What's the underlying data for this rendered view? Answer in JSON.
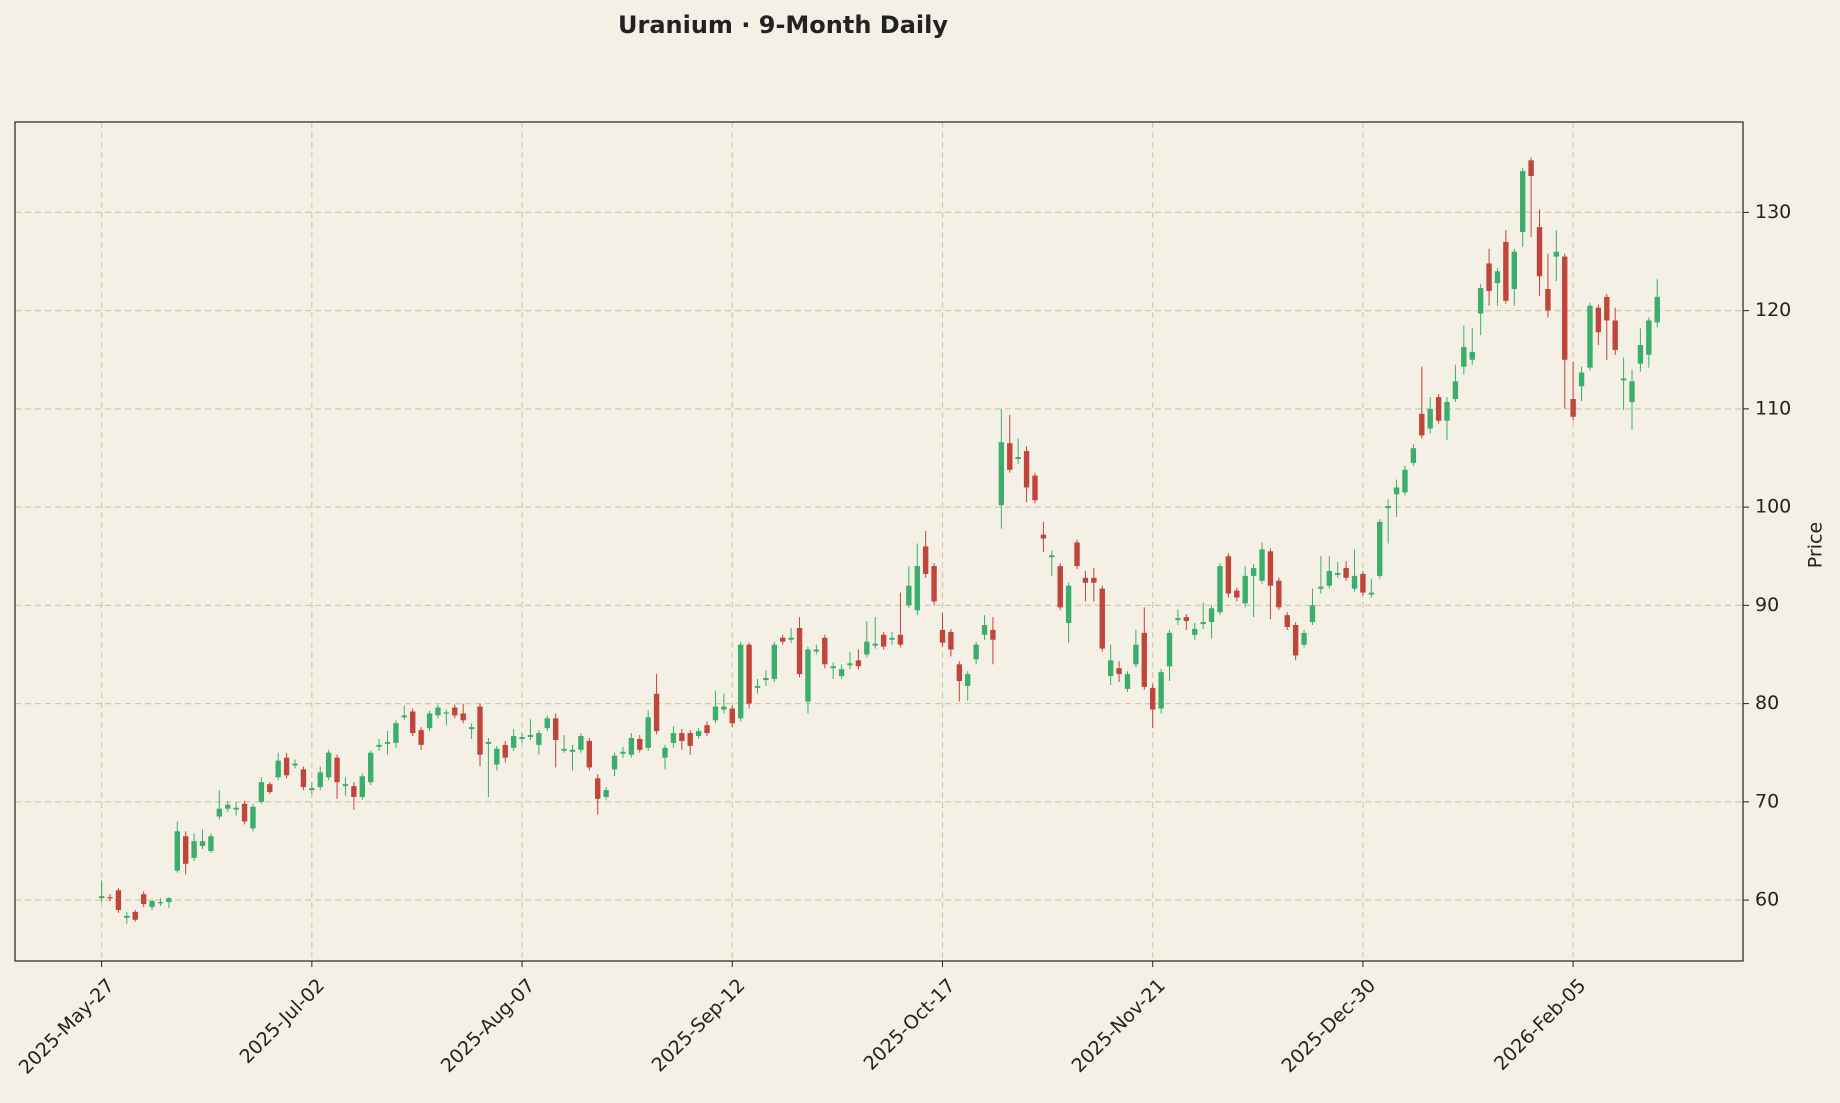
{
  "chart_data": {
    "type": "candlestick",
    "title": "Uranium  ·  9-Month Daily",
    "y_label": "Price",
    "up_color": "#3aae6a",
    "down_color": "#c0453a",
    "grid": true,
    "ylim": [
      53.8,
      139.2
    ],
    "yticks": [
      60,
      70,
      80,
      90,
      100,
      110,
      120,
      130
    ],
    "xlim": [
      -10.3,
      195.2
    ],
    "categories": [
      "2025-May-27",
      null,
      null,
      null,
      null,
      null,
      null,
      null,
      null,
      null,
      null,
      null,
      null,
      null,
      null,
      null,
      null,
      null,
      null,
      null,
      null,
      null,
      null,
      null,
      null,
      "2025-Jul-02",
      null,
      null,
      null,
      null,
      null,
      null,
      null,
      null,
      null,
      null,
      null,
      null,
      null,
      null,
      null,
      null,
      null,
      null,
      null,
      null,
      null,
      null,
      null,
      null,
      "2025-Aug-07",
      null,
      null,
      null,
      null,
      null,
      null,
      null,
      null,
      null,
      null,
      null,
      null,
      null,
      null,
      null,
      null,
      null,
      null,
      null,
      null,
      null,
      null,
      null,
      null,
      "2025-Sep-12",
      null,
      null,
      null,
      null,
      null,
      null,
      null,
      null,
      null,
      null,
      null,
      null,
      null,
      null,
      null,
      null,
      null,
      null,
      null,
      null,
      null,
      null,
      null,
      null,
      "2025-Oct-17",
      null,
      null,
      null,
      null,
      null,
      null,
      null,
      null,
      null,
      null,
      null,
      null,
      null,
      null,
      null,
      null,
      null,
      null,
      null,
      null,
      null,
      null,
      null,
      null,
      "2025-Nov-21",
      null,
      null,
      null,
      null,
      null,
      null,
      null,
      null,
      null,
      null,
      null,
      null,
      null,
      null,
      null,
      null,
      null,
      null,
      null,
      null,
      null,
      null,
      null,
      null,
      "2025-Dec-30",
      null,
      null,
      null,
      null,
      null,
      null,
      null,
      null,
      null,
      null,
      null,
      null,
      null,
      null,
      null,
      null,
      null,
      null,
      null,
      null,
      null,
      null,
      null,
      null,
      "2026-Feb-05",
      null,
      null,
      null,
      null,
      null,
      null,
      null,
      null,
      null,
      null
    ],
    "open": [
      60.2,
      60.3,
      61,
      58.2,
      58.8,
      60.6,
      59.3,
      59.7,
      59.8,
      63,
      66.5,
      64.3,
      65.5,
      65,
      68.5,
      69.3,
      69.2,
      69.8,
      67.3,
      70,
      71.8,
      72.5,
      74.5,
      73.7,
      73.3,
      71.2,
      71.5,
      72.5,
      74.5,
      71.6,
      71.6,
      70.5,
      72,
      75.6,
      75.9,
      76,
      78.6,
      79.2,
      77.3,
      77.5,
      78.8,
      79,
      79.6,
      79,
      77.4,
      79.7,
      75.9,
      73.8,
      75.8,
      75.5,
      76.4,
      76.6,
      75.8,
      77.5,
      78.5,
      75.2,
      75.1,
      75.3,
      76.2,
      72.4,
      70.5,
      73.3,
      74.9,
      74.8,
      76.4,
      75.5,
      81,
      74.5,
      76,
      77,
      77,
      76.7,
      77.8,
      78.3,
      79.4,
      79.5,
      78.5,
      86,
      81.6,
      82.4,
      82.5,
      86.7,
      86.5,
      87.7,
      80.2,
      85.3,
      86.7,
      83.6,
      82.8,
      83.9,
      84.4,
      85,
      85.9,
      87,
      86.5,
      87,
      90,
      89.5,
      96,
      94,
      87.5,
      87.3,
      84,
      81.8,
      84.5,
      87,
      87.5,
      100.2,
      106.5,
      104.9,
      105.7,
      103.2,
      97.2,
      94.9,
      94,
      88.2,
      96.4,
      92.8,
      92.8,
      91.7,
      82.8,
      83.6,
      81.5,
      84,
      87.2,
      81.6,
      79.5,
      83.8,
      88.5,
      88.8,
      87,
      88.1,
      88.3,
      89.3,
      95,
      91.5,
      90.2,
      93,
      92.5,
      95.5,
      92.5,
      89,
      88,
      86,
      88.3,
      91.7,
      92,
      93.1,
      93.8,
      91.7,
      93.2,
      91.1,
      93,
      99.9,
      101.3,
      101.5,
      104.5,
      109.5,
      108,
      111.2,
      108.8,
      111,
      114.3,
      115,
      119.7,
      124.8,
      122.8,
      127,
      122.2,
      128,
      135.3,
      128.5,
      122.2,
      125.5,
      125.5,
      111,
      112.3,
      114.2,
      120.3,
      121.4,
      119,
      112.9,
      110.7,
      114.6,
      115.5,
      118.8
    ],
    "high": [
      62,
      60.6,
      61.2,
      58.8,
      59,
      60.9,
      60.1,
      60.2,
      60.3,
      68,
      67,
      66.8,
      67.2,
      66.8,
      71.2,
      70,
      70,
      70.1,
      69.8,
      72.5,
      72,
      75,
      75,
      74.3,
      73.6,
      72,
      73.6,
      75.3,
      74.8,
      72.5,
      72,
      72.9,
      75.2,
      76.4,
      77.2,
      78.3,
      79.8,
      79.5,
      77.6,
      79.3,
      79.9,
      79.4,
      79.9,
      80,
      78,
      80,
      76.5,
      75.7,
      76.2,
      77.4,
      77,
      78.4,
      77.3,
      78.8,
      79,
      76.8,
      75.8,
      77,
      76.5,
      72.8,
      71.5,
      75,
      75.6,
      77,
      76.8,
      79.3,
      83,
      75.8,
      77.7,
      77.4,
      77.3,
      77.5,
      78.2,
      81.3,
      81,
      79.8,
      86.3,
      86.2,
      82.5,
      83.4,
      86.3,
      87,
      87.7,
      88.8,
      85.8,
      86,
      87,
      84.2,
      84,
      85.3,
      85.5,
      88.4,
      88.8,
      87.3,
      87.3,
      91.3,
      94,
      96.3,
      97.6,
      94.3,
      89.2,
      87.6,
      84.3,
      83.3,
      86.3,
      89,
      88.8,
      110,
      109.4,
      107,
      106.2,
      103.5,
      98.5,
      95.6,
      94.3,
      92.3,
      96.7,
      93.5,
      93.8,
      92,
      86,
      84.3,
      83.3,
      87.5,
      89.8,
      82,
      83.5,
      87.5,
      89.6,
      89.1,
      88.2,
      90.3,
      90,
      94.3,
      95.3,
      91.8,
      94,
      94.2,
      96.4,
      95.8,
      92.8,
      89.3,
      88.3,
      87.5,
      91.7,
      95,
      95,
      94.4,
      94.5,
      95.7,
      93.5,
      92.7,
      98.8,
      100.8,
      102.8,
      104.2,
      106.4,
      114.3,
      111.2,
      111.5,
      111.2,
      114.5,
      118.5,
      118.2,
      122.7,
      126.3,
      124.3,
      128.2,
      126.3,
      134.5,
      135.6,
      130.3,
      125.8,
      128.2,
      125.8,
      114.8,
      114.3,
      120.8,
      120.6,
      121.7,
      120.3,
      115.2,
      114,
      118.2,
      119.3,
      123.2
    ],
    "low": [
      59.8,
      59.9,
      58.7,
      57.6,
      57.8,
      59.3,
      59,
      59.4,
      59.2,
      62.8,
      62.6,
      64,
      65.2,
      64.8,
      68.2,
      69,
      68.6,
      67.7,
      67,
      69.8,
      70.8,
      72.2,
      72.4,
      73.4,
      71.2,
      70.8,
      71.2,
      72.2,
      70.3,
      70.6,
      69.2,
      70.2,
      71.7,
      75.2,
      74.8,
      75.5,
      78.3,
      76.7,
      75.3,
      77.2,
      78.5,
      77.8,
      78.5,
      78,
      76.4,
      73.6,
      70.5,
      73.2,
      74,
      75.2,
      76,
      76.3,
      74.8,
      77.2,
      73.5,
      75,
      73.2,
      75,
      73.2,
      68.7,
      70.2,
      72.6,
      74.5,
      74.5,
      75,
      75.2,
      76.9,
      73.3,
      75.5,
      75.3,
      74.8,
      76.4,
      76.7,
      78,
      79,
      77.6,
      78.2,
      79.5,
      81,
      81.8,
      82.2,
      86,
      86.2,
      82.7,
      79,
      85,
      83.6,
      82.5,
      82.5,
      83.5,
      83.5,
      84.7,
      85.6,
      85.5,
      86,
      85.7,
      89.7,
      89,
      92.8,
      90,
      85.8,
      84.8,
      80.2,
      80.3,
      84,
      86.5,
      84,
      97.8,
      103.5,
      104.4,
      100.5,
      100.4,
      95.4,
      93,
      89.5,
      86.2,
      93.7,
      90.4,
      90.4,
      85.3,
      81.9,
      82.2,
      81.2,
      83.7,
      81.4,
      77.5,
      79,
      82.3,
      88,
      87.5,
      86.5,
      87.6,
      86.6,
      89,
      90.8,
      90.4,
      89.8,
      88.8,
      92.2,
      88.6,
      89.5,
      87.5,
      84.4,
      85.7,
      88,
      91.2,
      91.7,
      92.8,
      92.5,
      91.4,
      91,
      90.8,
      92.7,
      96.3,
      99,
      101.2,
      104.2,
      107,
      107.5,
      108.5,
      106.8,
      110.7,
      113.5,
      114.5,
      117.5,
      120.5,
      120.5,
      120.7,
      120.5,
      126.5,
      127.5,
      121.5,
      119.3,
      123,
      110,
      108.8,
      110.8,
      113.9,
      116.5,
      115,
      115.5,
      109.9,
      107.9,
      113.8,
      114.2,
      118.3
    ],
    "close": [
      60.4,
      60.2,
      59,
      58.4,
      58,
      59.6,
      59.9,
      59.8,
      60.2,
      67,
      63.7,
      66,
      66,
      66.5,
      69.3,
      69.7,
      69.4,
      68,
      69.5,
      72,
      71,
      74.2,
      72.7,
      73.9,
      71.5,
      71.4,
      73,
      75,
      72,
      71.8,
      70.5,
      72.6,
      75,
      75.8,
      76.1,
      78,
      78.8,
      77,
      75.8,
      79,
      79.6,
      79.1,
      78.8,
      78.3,
      77.6,
      74.8,
      76.1,
      75.4,
      74.5,
      76.7,
      76.6,
      76.8,
      77,
      78.5,
      76.3,
      75.4,
      75.3,
      76.7,
      73.5,
      70.3,
      71.2,
      74.7,
      75.1,
      76.5,
      75.3,
      78.6,
      77.2,
      75.5,
      77,
      76.2,
      75.7,
      77.2,
      77,
      79.7,
      79.7,
      78,
      86,
      80,
      81.8,
      82.6,
      86,
      86.3,
      86.7,
      83,
      85.5,
      85.5,
      84,
      83.8,
      83.5,
      84.1,
      83.8,
      86.3,
      86.1,
      85.8,
      86.7,
      86,
      92,
      94,
      93.2,
      90.4,
      86.2,
      85.5,
      82.3,
      83,
      86,
      88,
      86.5,
      106.6,
      103.8,
      105.1,
      102,
      100.7,
      96.8,
      95.1,
      89.8,
      92,
      94,
      92.3,
      92.3,
      85.6,
      84.4,
      83,
      83,
      86,
      81.7,
      79.4,
      83.2,
      87.2,
      88.7,
      88.4,
      87.6,
      88.3,
      89.7,
      94,
      91.2,
      90.8,
      93,
      93.8,
      95.7,
      92,
      89.8,
      87.8,
      84.9,
      87.2,
      90,
      91.9,
      93.5,
      93.3,
      92.8,
      93,
      91.3,
      91.3,
      98.5,
      100.1,
      102,
      103.8,
      106,
      107.3,
      110,
      108.8,
      110.7,
      112.8,
      116.3,
      115.8,
      122.3,
      122,
      124,
      121,
      126,
      134.2,
      133.7,
      123.5,
      120,
      126,
      115,
      109.2,
      113.7,
      120.5,
      117.8,
      119,
      116,
      113.1,
      112.8,
      116.5,
      119,
      121.4
    ]
  }
}
